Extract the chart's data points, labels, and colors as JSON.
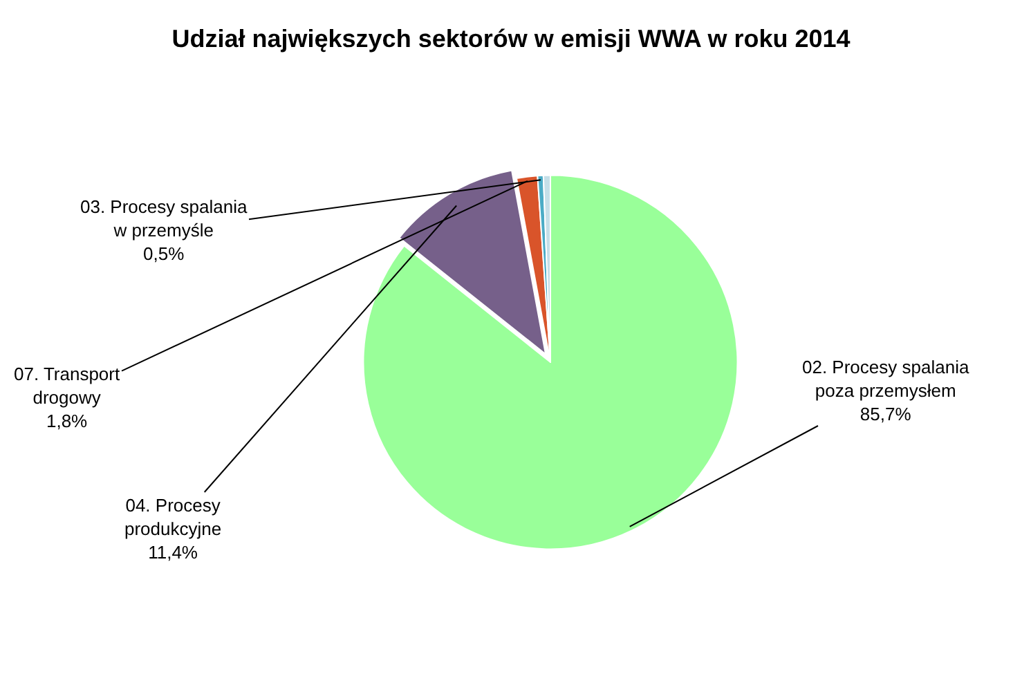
{
  "chart_data": {
    "type": "pie",
    "title": "Udział największych sektorów w emisji WWA w roku 2014",
    "categories": [
      "02. Procesy spalania\npoza przemysłem",
      "04. Procesy\nprodukcyjne",
      "07. Transport\ndrogowy",
      "03. Procesy spalania\nw przemyśle",
      null
    ],
    "values": [
      85.7,
      11.4,
      1.8,
      0.5,
      0.6
    ],
    "colors": [
      "#99ff99",
      "#76608a",
      "#d9542a",
      "#4bacc6",
      "#c5dfe8"
    ],
    "value_labels": [
      "85,7%",
      "11,4%",
      "1,8%",
      "0,5%",
      null
    ],
    "legend": false
  }
}
